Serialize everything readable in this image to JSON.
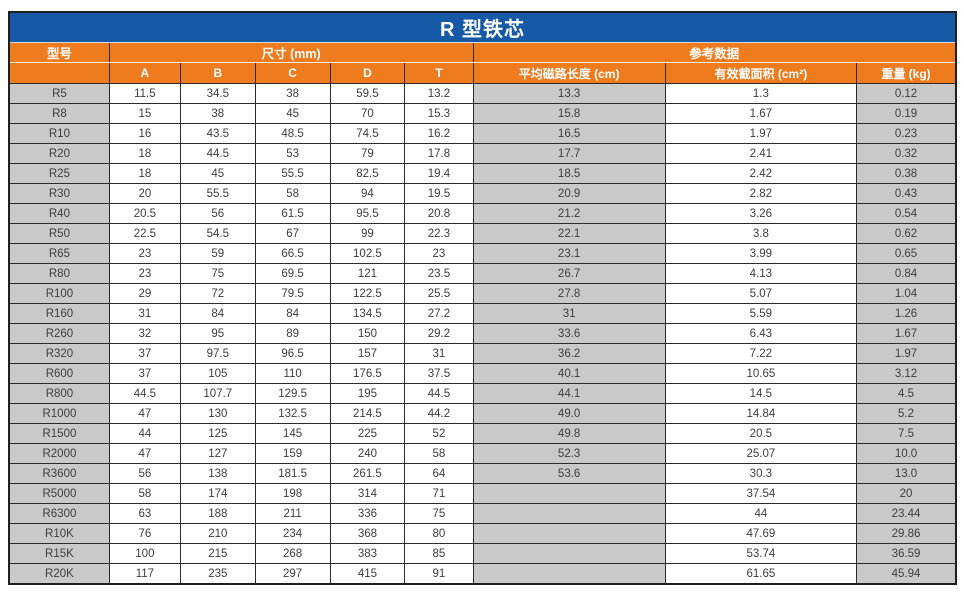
{
  "table": {
    "title": "R 型铁芯",
    "header": {
      "model": "型号",
      "dimensions_group": "尺寸 (mm)",
      "reference_group": "参考数据",
      "dim_cols": [
        "A",
        "B",
        "C",
        "D",
        "T"
      ],
      "ref_cols": [
        "平均磁路长度 (cm)",
        "有效截面积 (cm²)",
        "重量 (kg)"
      ]
    },
    "rows": [
      [
        "R5",
        "11.5",
        "34.5",
        "38",
        "59.5",
        "13.2",
        "13.3",
        "1.3",
        "0.12"
      ],
      [
        "R8",
        "15",
        "38",
        "45",
        "70",
        "15.3",
        "15.8",
        "1.67",
        "0.19"
      ],
      [
        "R10",
        "16",
        "43.5",
        "48.5",
        "74.5",
        "16.2",
        "16.5",
        "1.97",
        "0.23"
      ],
      [
        "R20",
        "18",
        "44.5",
        "53",
        "79",
        "17.8",
        "17.7",
        "2.41",
        "0.32"
      ],
      [
        "R25",
        "18",
        "45",
        "55.5",
        "82.5",
        "19.4",
        "18.5",
        "2.42",
        "0.38"
      ],
      [
        "R30",
        "20",
        "55.5",
        "58",
        "94",
        "19.5",
        "20.9",
        "2.82",
        "0.43"
      ],
      [
        "R40",
        "20.5",
        "56",
        "61.5",
        "95.5",
        "20.8",
        "21.2",
        "3.26",
        "0.54"
      ],
      [
        "R50",
        "22.5",
        "54.5",
        "67",
        "99",
        "22.3",
        "22.1",
        "3.8",
        "0.62"
      ],
      [
        "R65",
        "23",
        "59",
        "66.5",
        "102.5",
        "23",
        "23.1",
        "3.99",
        "0.65"
      ],
      [
        "R80",
        "23",
        "75",
        "69.5",
        "121",
        "23.5",
        "26.7",
        "4.13",
        "0.84"
      ],
      [
        "R100",
        "29",
        "72",
        "79.5",
        "122.5",
        "25.5",
        "27.8",
        "5.07",
        "1.04"
      ],
      [
        "R160",
        "31",
        "84",
        "84",
        "134.5",
        "27.2",
        "31",
        "5.59",
        "1.26"
      ],
      [
        "R260",
        "32",
        "95",
        "89",
        "150",
        "29.2",
        "33.6",
        "6.43",
        "1.67"
      ],
      [
        "R320",
        "37",
        "97.5",
        "96.5",
        "157",
        "31",
        "36.2",
        "7.22",
        "1.97"
      ],
      [
        "R600",
        "37",
        "105",
        "110",
        "176.5",
        "37.5",
        "40.1",
        "10.65",
        "3.12"
      ],
      [
        "R800",
        "44.5",
        "107.7",
        "129.5",
        "195",
        "44.5",
        "44.1",
        "14.5",
        "4.5"
      ],
      [
        "R1000",
        "47",
        "130",
        "132.5",
        "214.5",
        "44.2",
        "49.0",
        "14.84",
        "5.2"
      ],
      [
        "R1500",
        "44",
        "125",
        "145",
        "225",
        "52",
        "49.8",
        "20.5",
        "7.5"
      ],
      [
        "R2000",
        "47",
        "127",
        "159",
        "240",
        "58",
        "52.3",
        "25.07",
        "10.0"
      ],
      [
        "R3600",
        "56",
        "138",
        "181.5",
        "261.5",
        "64",
        "53.6",
        "30.3",
        "13.0"
      ],
      [
        "R5000",
        "58",
        "174",
        "198",
        "314",
        "71",
        "",
        "37.54",
        "20"
      ],
      [
        "R6300",
        "63",
        "188",
        "211",
        "336",
        "75",
        "",
        "44",
        "23.44"
      ],
      [
        "R10K",
        "76",
        "210",
        "234",
        "368",
        "80",
        "",
        "47.69",
        "29.86"
      ],
      [
        "R15K",
        "100",
        "215",
        "268",
        "383",
        "85",
        "",
        "53.74",
        "36.59"
      ],
      [
        "R20K",
        "117",
        "235",
        "297",
        "415",
        "91",
        "",
        "61.65",
        "45.94"
      ]
    ]
  },
  "colors": {
    "title_bg": "#1659a6",
    "header_bg": "#ee7c1f",
    "header_text": "#ffffff",
    "stripe_gray": "#c9c9c9",
    "row_white": "#ffffff",
    "border": "#2b2b2b",
    "cell_text": "#3d3d3d"
  }
}
